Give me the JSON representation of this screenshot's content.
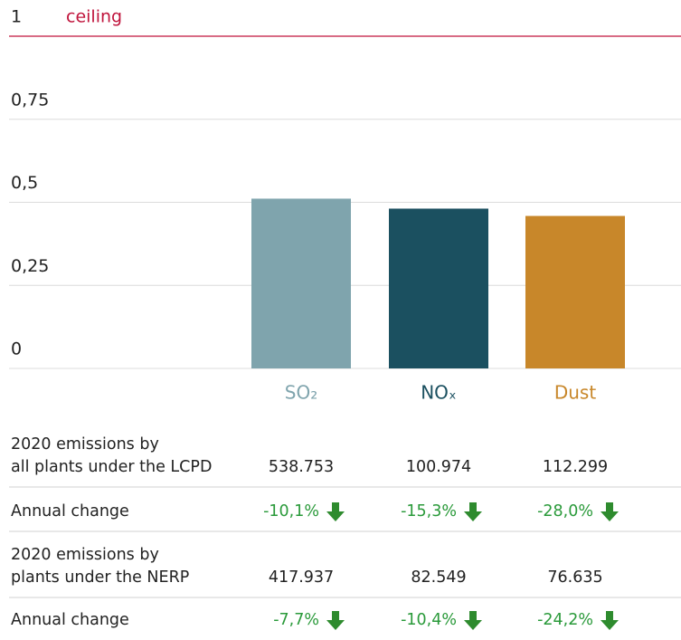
{
  "chart_data": {
    "type": "bar",
    "categories": [
      "SO₂",
      "NOₓ",
      "Dust"
    ],
    "values": [
      0.511,
      0.481,
      0.459
    ],
    "colors": [
      "#7fa4ad",
      "#1b5060",
      "#c8872a"
    ],
    "ylim": [
      0,
      1
    ],
    "yticks": [
      0,
      {
        "value": 0.25,
        "label": "0,25"
      },
      {
        "value": 0.5,
        "label": "0,5"
      },
      {
        "value": 0.75,
        "label": "0,75"
      },
      1
    ],
    "annotation": "ceiling",
    "grid": true
  },
  "table": {
    "rows": [
      {
        "label": [
          "2020 emissions by",
          "all plants under the LCPD"
        ],
        "cells": [
          "538.753",
          "100.974",
          "112.299"
        ]
      },
      {
        "label": [
          "Annual change"
        ],
        "cells": [
          "-10,1%",
          "-15,3%",
          "-28,0%"
        ],
        "arrows": true
      },
      {
        "label": [
          "2020 emissions by",
          "plants under the NERP"
        ],
        "cells": [
          "417.937",
          "82.549",
          "76.635"
        ]
      },
      {
        "label": [
          "Annual change"
        ],
        "cells": [
          "-7,7%",
          "-10,4%",
          "-24,2%"
        ],
        "arrows": true
      }
    ]
  }
}
